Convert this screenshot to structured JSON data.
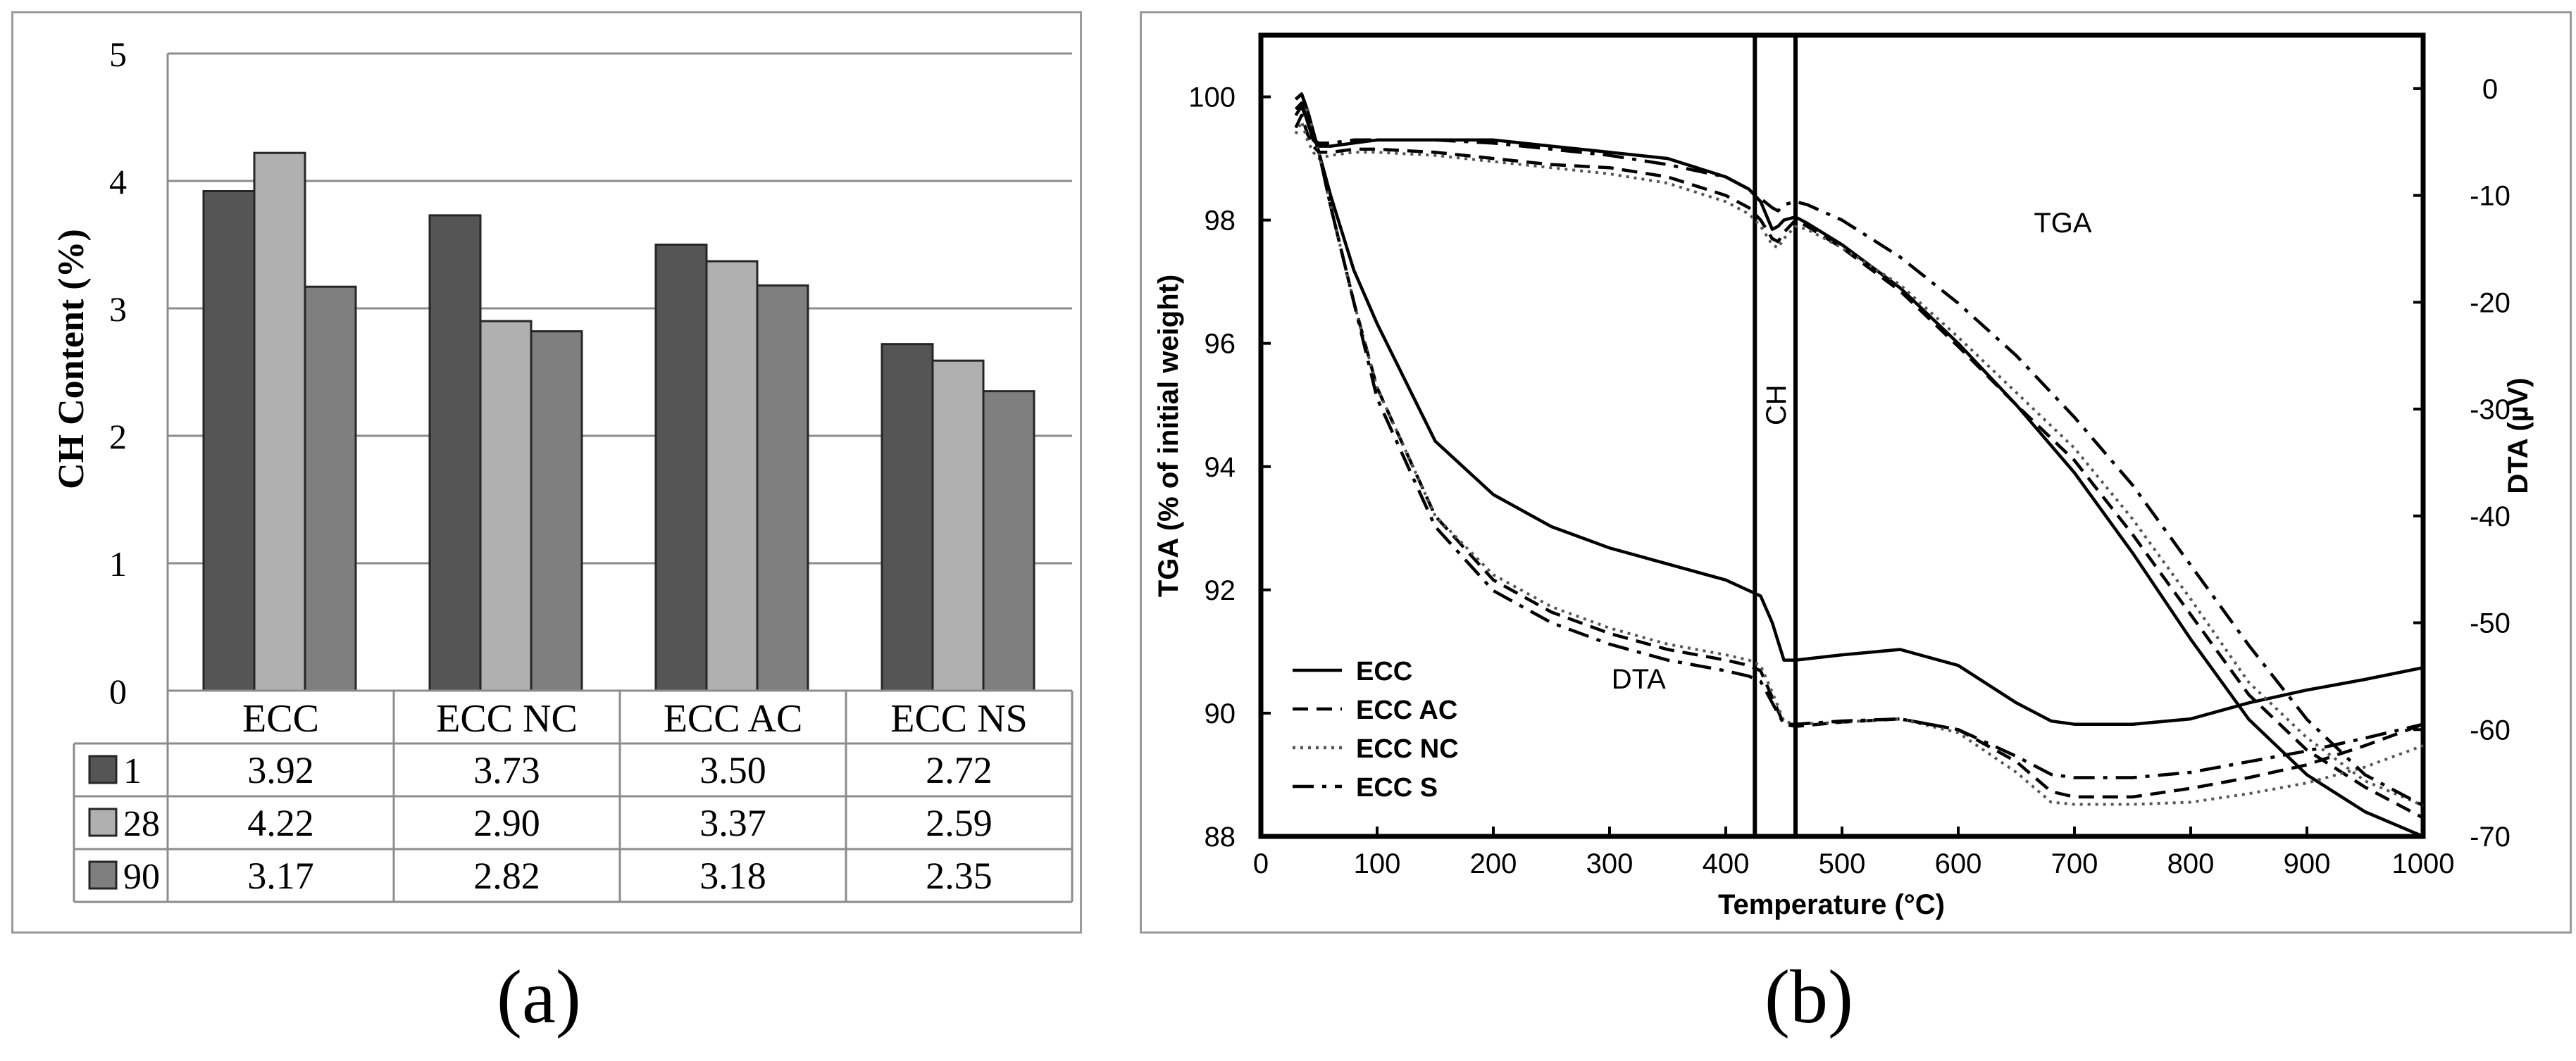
{
  "captions": {
    "a": "(a)",
    "b": "(b)"
  },
  "chart_data": [
    {
      "type": "bar",
      "title": "",
      "xlabel": "",
      "ylabel": "CH Content (%)",
      "ylim": [
        0,
        5
      ],
      "yticks": [
        "0",
        "1",
        "2",
        "3",
        "4",
        "5"
      ],
      "grid": true,
      "categories": [
        "ECC",
        "ECC NC",
        "ECC AC",
        "ECC NS"
      ],
      "series": [
        {
          "name": "1",
          "color": "#555555",
          "values": [
            3.92,
            3.73,
            3.5,
            2.72
          ],
          "labels": [
            "3.92",
            "3.73",
            "3.50",
            "2.72"
          ]
        },
        {
          "name": "28",
          "color": "#b0b0b0",
          "values": [
            4.22,
            2.9,
            3.37,
            2.59
          ],
          "labels": [
            "4.22",
            "2.90",
            "3.37",
            "2.59"
          ]
        },
        {
          "name": "90",
          "color": "#7f7f7f",
          "values": [
            3.17,
            2.82,
            3.18,
            2.35
          ],
          "labels": [
            "3.17",
            "2.82",
            "3.18",
            "2.35"
          ]
        }
      ],
      "legend": "data-table-below"
    },
    {
      "type": "line",
      "title": "",
      "xlabel": "Temperature (°C)",
      "ylabel": "TGA (% of initial weight)",
      "y2label": "DTA (µV)",
      "xlim": [
        0,
        1000
      ],
      "ylim": [
        88,
        101
      ],
      "y2lim": [
        -70,
        5
      ],
      "xticks": [
        "0",
        "100",
        "200",
        "300",
        "400",
        "500",
        "600",
        "700",
        "800",
        "900",
        "1000"
      ],
      "yticks": [
        "88",
        "90",
        "92",
        "94",
        "96",
        "98",
        "100"
      ],
      "y2ticks": [
        "-70",
        "-60",
        "-50",
        "-40",
        "-30",
        "-20",
        "-10",
        "0"
      ],
      "grid": false,
      "legend": "bottom-left",
      "annotations": [
        {
          "text": "TGA",
          "x": 690,
          "y": 97.8
        },
        {
          "text": "DTA",
          "x": 325,
          "y": 90.4
        },
        {
          "text": "CH",
          "x": 443,
          "y": 95.0,
          "rotated": true
        }
      ],
      "ch_band": [
        425,
        460
      ],
      "series": [
        {
          "name": "ECC",
          "dash": "none",
          "curve": "TGA",
          "axis": "left",
          "x": [
            30,
            35,
            40,
            45,
            50,
            60,
            80,
            100,
            150,
            200,
            250,
            300,
            350,
            400,
            420,
            430,
            440,
            445,
            450,
            460,
            470,
            500,
            550,
            600,
            650,
            700,
            750,
            800,
            850,
            900,
            950,
            1000
          ],
          "y": [
            99.8,
            99.9,
            99.6,
            99.3,
            99.2,
            99.2,
            99.25,
            99.3,
            99.3,
            99.3,
            99.2,
            99.1,
            99.0,
            98.7,
            98.5,
            98.3,
            97.85,
            97.9,
            98.0,
            98.05,
            97.95,
            97.6,
            96.9,
            96.0,
            95.0,
            93.9,
            92.6,
            91.2,
            89.9,
            89.0,
            88.4,
            88.0
          ]
        },
        {
          "name": "ECC",
          "dash": "none",
          "curve": "DTA",
          "axis": "right",
          "x": [
            30,
            35,
            40,
            45,
            50,
            60,
            80,
            100,
            150,
            200,
            250,
            300,
            350,
            400,
            420,
            430,
            440,
            450,
            460,
            500,
            550,
            600,
            650,
            680,
            700,
            750,
            800,
            850,
            900,
            950,
            1000
          ],
          "y": [
            -1,
            -0.5,
            -2,
            -4,
            -6,
            -10,
            -17,
            -22,
            -33,
            -38,
            -41,
            -43,
            -44.5,
            -46,
            -47,
            -47.5,
            -50,
            -53.5,
            -53.5,
            -53,
            -52.5,
            -54,
            -57.5,
            -59.2,
            -59.5,
            -59.5,
            -59,
            -57.5,
            -56.3,
            -55.3,
            -54.2
          ]
        },
        {
          "name": "ECC AC",
          "dash": "dash",
          "curve": "TGA",
          "axis": "left",
          "x": [
            30,
            35,
            40,
            45,
            50,
            60,
            80,
            100,
            150,
            200,
            250,
            300,
            350,
            400,
            420,
            430,
            440,
            445,
            450,
            460,
            470,
            500,
            550,
            600,
            650,
            700,
            750,
            800,
            850,
            900,
            950,
            1000
          ],
          "y": [
            99.5,
            99.7,
            99.4,
            99.2,
            99.1,
            99.1,
            99.15,
            99.15,
            99.1,
            99.0,
            98.9,
            98.85,
            98.7,
            98.4,
            98.2,
            98.0,
            97.7,
            97.65,
            97.8,
            98.0,
            97.9,
            97.55,
            96.85,
            95.95,
            95.0,
            94.1,
            92.9,
            91.6,
            90.3,
            89.4,
            88.8,
            88.3
          ]
        },
        {
          "name": "ECC AC",
          "dash": "dash",
          "curve": "DTA",
          "axis": "right",
          "x": [
            30,
            35,
            40,
            45,
            50,
            60,
            80,
            100,
            150,
            200,
            250,
            300,
            350,
            400,
            420,
            430,
            440,
            450,
            460,
            500,
            550,
            600,
            650,
            680,
            700,
            750,
            800,
            850,
            900,
            950,
            1000
          ],
          "y": [
            -1,
            -0.5,
            -2,
            -4,
            -6,
            -11,
            -20,
            -28,
            -40,
            -46,
            -49,
            -51,
            -52.5,
            -53.5,
            -54,
            -54.5,
            -57,
            -59.5,
            -59.7,
            -59.3,
            -59,
            -60,
            -63,
            -65.8,
            -66.3,
            -66.3,
            -65.5,
            -64.5,
            -63.3,
            -61.5,
            -59.5
          ]
        },
        {
          "name": "ECC NC",
          "dash": "dot",
          "curve": "TGA",
          "axis": "left",
          "x": [
            30,
            35,
            40,
            45,
            50,
            60,
            80,
            100,
            150,
            200,
            250,
            300,
            350,
            400,
            420,
            430,
            440,
            445,
            450,
            460,
            470,
            500,
            550,
            600,
            650,
            700,
            750,
            800,
            850,
            900,
            950,
            1000
          ],
          "y": [
            99.4,
            99.6,
            99.3,
            99.1,
            99.0,
            99.05,
            99.1,
            99.1,
            99.05,
            98.95,
            98.85,
            98.75,
            98.6,
            98.3,
            98.1,
            97.9,
            97.6,
            97.55,
            97.7,
            97.9,
            97.85,
            97.55,
            96.95,
            96.1,
            95.2,
            94.3,
            93.15,
            91.85,
            90.5,
            89.6,
            88.9,
            88.5
          ]
        },
        {
          "name": "ECC NC",
          "dash": "dot",
          "curve": "DTA",
          "axis": "right",
          "x": [
            30,
            35,
            40,
            45,
            50,
            60,
            80,
            100,
            150,
            200,
            250,
            300,
            350,
            400,
            420,
            430,
            440,
            450,
            460,
            500,
            550,
            600,
            650,
            680,
            700,
            750,
            800,
            850,
            900,
            950,
            1000
          ],
          "y": [
            -1,
            -0.5,
            -2,
            -4,
            -6,
            -11,
            -20,
            -28,
            -40,
            -45.5,
            -48.5,
            -50.5,
            -52,
            -53,
            -53.5,
            -54,
            -56.5,
            -59.2,
            -59.5,
            -59.3,
            -59,
            -60.3,
            -64,
            -66.8,
            -67,
            -67,
            -66.8,
            -66,
            -65,
            -63.5,
            -61.5
          ]
        },
        {
          "name": "ECC S",
          "dash": "dashdot",
          "curve": "TGA",
          "axis": "left",
          "x": [
            30,
            35,
            40,
            45,
            50,
            60,
            80,
            100,
            150,
            200,
            250,
            300,
            350,
            400,
            420,
            430,
            440,
            445,
            450,
            460,
            470,
            500,
            550,
            600,
            650,
            700,
            750,
            800,
            850,
            900,
            950,
            1000
          ],
          "y": [
            99.7,
            99.85,
            99.6,
            99.3,
            99.25,
            99.25,
            99.3,
            99.3,
            99.3,
            99.25,
            99.15,
            99.05,
            98.9,
            98.7,
            98.5,
            98.35,
            98.2,
            98.15,
            98.25,
            98.3,
            98.25,
            98.0,
            97.4,
            96.65,
            95.8,
            94.8,
            93.7,
            92.4,
            91.1,
            89.9,
            89.0,
            88.5
          ]
        },
        {
          "name": "ECC S",
          "dash": "dashdot",
          "curve": "DTA",
          "axis": "right",
          "x": [
            30,
            35,
            40,
            45,
            50,
            60,
            80,
            100,
            150,
            200,
            250,
            300,
            350,
            400,
            420,
            430,
            440,
            450,
            460,
            500,
            550,
            600,
            650,
            680,
            700,
            750,
            800,
            850,
            900,
            950,
            1000
          ],
          "y": [
            -1,
            -0.5,
            -2,
            -4,
            -6,
            -11,
            -20,
            -29,
            -41,
            -47,
            -50,
            -52,
            -53.5,
            -54.5,
            -55,
            -55.5,
            -57.5,
            -59.5,
            -59.5,
            -59.2,
            -59,
            -60,
            -62.5,
            -64.2,
            -64.5,
            -64.5,
            -64,
            -63,
            -62,
            -60.8,
            -59.5
          ]
        }
      ]
    }
  ]
}
